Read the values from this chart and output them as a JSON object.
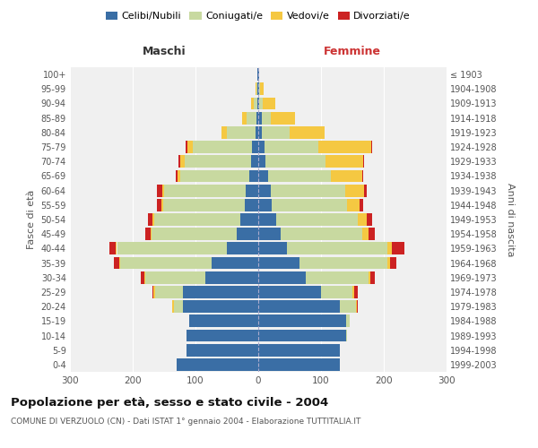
{
  "age_groups": [
    "0-4",
    "5-9",
    "10-14",
    "15-19",
    "20-24",
    "25-29",
    "30-34",
    "35-39",
    "40-44",
    "45-49",
    "50-54",
    "55-59",
    "60-64",
    "65-69",
    "70-74",
    "75-79",
    "80-84",
    "85-89",
    "90-94",
    "95-99",
    "100+"
  ],
  "birth_years": [
    "1999-2003",
    "1994-1998",
    "1989-1993",
    "1984-1988",
    "1979-1983",
    "1974-1978",
    "1969-1973",
    "1964-1968",
    "1959-1963",
    "1954-1958",
    "1949-1953",
    "1944-1948",
    "1939-1943",
    "1934-1938",
    "1929-1933",
    "1924-1928",
    "1919-1923",
    "1914-1918",
    "1909-1913",
    "1904-1908",
    "≤ 1903"
  ],
  "maschi": {
    "celibi": [
      130,
      115,
      115,
      110,
      120,
      120,
      85,
      75,
      50,
      35,
      28,
      22,
      20,
      14,
      12,
      10,
      5,
      3,
      2,
      1,
      1
    ],
    "coniugati": [
      0,
      0,
      0,
      0,
      15,
      45,
      95,
      145,
      175,
      135,
      138,
      130,
      130,
      110,
      105,
      95,
      45,
      15,
      5,
      2,
      0
    ],
    "vedovi": [
      0,
      0,
      0,
      0,
      2,
      2,
      2,
      2,
      2,
      2,
      2,
      2,
      3,
      5,
      8,
      8,
      8,
      8,
      5,
      2,
      0
    ],
    "divorziati": [
      0,
      0,
      0,
      0,
      0,
      2,
      5,
      8,
      10,
      8,
      8,
      8,
      8,
      2,
      2,
      2,
      0,
      0,
      0,
      0,
      0
    ]
  },
  "femmine": {
    "nubili": [
      130,
      130,
      140,
      140,
      130,
      100,
      75,
      65,
      45,
      35,
      28,
      22,
      20,
      15,
      12,
      10,
      5,
      5,
      2,
      1,
      1
    ],
    "coniugate": [
      0,
      0,
      2,
      5,
      25,
      50,
      100,
      140,
      160,
      130,
      130,
      120,
      118,
      100,
      95,
      85,
      45,
      15,
      5,
      2,
      0
    ],
    "vedove": [
      0,
      0,
      0,
      0,
      2,
      3,
      3,
      5,
      8,
      10,
      15,
      20,
      30,
      50,
      60,
      85,
      55,
      38,
      20,
      5,
      0
    ],
    "divorziate": [
      0,
      0,
      0,
      0,
      2,
      5,
      8,
      10,
      20,
      10,
      8,
      5,
      5,
      2,
      2,
      2,
      0,
      0,
      0,
      0,
      0
    ]
  },
  "colors": {
    "celibi_nubili": "#3a6ea5",
    "coniugati": "#c8d9a0",
    "vedovi": "#f5c842",
    "divorziati": "#cc2222"
  },
  "title": "Popolazione per età, sesso e stato civile - 2004",
  "subtitle": "COMUNE DI VERZUOLO (CN) - Dati ISTAT 1° gennaio 2004 - Elaborazione TUTTITALIA.IT",
  "xlabel_left": "Maschi",
  "xlabel_right": "Femmine",
  "ylabel_left": "Fasce di età",
  "ylabel_right": "Anni di nascita",
  "xlim": 300,
  "bg_color": "#ffffff",
  "plot_bg": "#f0f0f0"
}
